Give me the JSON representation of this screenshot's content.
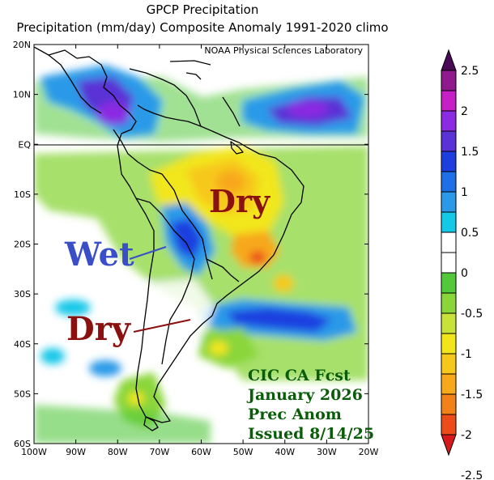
{
  "title": "GPCP Precipitation",
  "subtitle": "Precipitation (mm/day) Composite Anomaly 1991-2020 climo",
  "credit": "NOAA Physical Sciences Laboratory",
  "annotations": {
    "dry_north": "Dry",
    "wet": "Wet",
    "dry_south": "Dry",
    "forecast_block": [
      "CIC CA Fcst",
      "January 2026",
      "Prec Anom",
      "Issued 8/14/25"
    ]
  },
  "colors": {
    "dry_label": "#8b1010",
    "wet_label": "#3a4fc7",
    "forecast_text": "#0a5c0a",
    "border": "#000000"
  },
  "chart_data": {
    "type": "heatmap",
    "title": "GPCP Precipitation",
    "subtitle": "Precipitation (mm/day) Composite Anomaly 1991-2020 climo",
    "x_ticks": [
      "100W",
      "90W",
      "80W",
      "70W",
      "60W",
      "50W",
      "40W",
      "30W",
      "20W"
    ],
    "y_ticks": [
      "20N",
      "10N",
      "EQ",
      "10S",
      "20S",
      "30S",
      "40S",
      "50S",
      "60S"
    ],
    "x_range": [
      -100,
      -20
    ],
    "y_range": [
      -60,
      20
    ],
    "colorbar": {
      "labels": [
        "2.5",
        "2",
        "1.5",
        "1",
        "0.5",
        "0",
        "-0.5",
        "-1",
        "-1.5",
        "-2",
        "-2.5"
      ],
      "bins": [
        {
          "from": 2.25,
          "to": 2.5,
          "color": "#4b0a55"
        },
        {
          "from": 2.0,
          "to": 2.25,
          "color": "#8e1a8e"
        },
        {
          "from": 1.75,
          "to": 2.0,
          "color": "#c61fc6"
        },
        {
          "from": 1.5,
          "to": 1.75,
          "color": "#8b2be2"
        },
        {
          "from": 1.25,
          "to": 1.5,
          "color": "#5a32d6"
        },
        {
          "from": 1.0,
          "to": 1.25,
          "color": "#1e3fe0"
        },
        {
          "from": 0.75,
          "to": 1.0,
          "color": "#1f6fe6"
        },
        {
          "from": 0.5,
          "to": 0.75,
          "color": "#2a9ae8"
        },
        {
          "from": 0.25,
          "to": 0.5,
          "color": "#16c8e8"
        },
        {
          "from": 0.0,
          "to": 0.25,
          "color": "#ffffff"
        },
        {
          "from": -0.25,
          "to": 0.0,
          "color": "#ffffff"
        },
        {
          "from": -0.5,
          "to": -0.25,
          "color": "#52c83a"
        },
        {
          "from": -0.75,
          "to": -0.5,
          "color": "#8ad63a"
        },
        {
          "from": -1.0,
          "to": -0.75,
          "color": "#c8e23a"
        },
        {
          "from": -1.25,
          "to": -1.0,
          "color": "#f2e61a"
        },
        {
          "from": -1.5,
          "to": -1.25,
          "color": "#f7c81c"
        },
        {
          "from": -1.75,
          "to": -1.5,
          "color": "#f7a81c"
        },
        {
          "from": -2.0,
          "to": -1.75,
          "color": "#f2811a"
        },
        {
          "from": -2.25,
          "to": -2.0,
          "color": "#ec4b1a"
        },
        {
          "from": -2.5,
          "to": -2.25,
          "color": "#d61a1a"
        }
      ]
    },
    "anomaly_regions": [
      {
        "region": "Caribbean / northern South America",
        "lon": [
          -85,
          -70
        ],
        "lat": [
          5,
          15
        ],
        "anomaly": 1.5
      },
      {
        "region": "Tropical Atlantic near 10N",
        "lon": [
          -50,
          -25
        ],
        "lat": [
          5,
          15
        ],
        "anomaly": 1.5
      },
      {
        "region": "Central Brazil",
        "lon": [
          -60,
          -40
        ],
        "lat": [
          -20,
          -2
        ],
        "anomaly": -1.2
      },
      {
        "region": "Southeast Brazil",
        "lon": [
          -55,
          -40
        ],
        "lat": [
          -26,
          -18
        ],
        "anomaly": -2.0
      },
      {
        "region": "Bolivia / western Amazon",
        "lon": [
          -70,
          -60
        ],
        "lat": [
          -25,
          -12
        ],
        "anomaly": 1.0
      },
      {
        "region": "Subtropical South Atlantic",
        "lon": [
          -60,
          -30
        ],
        "lat": [
          -40,
          -33
        ],
        "anomaly": 1.0
      },
      {
        "region": "Central Argentina",
        "lon": [
          -68,
          -58
        ],
        "lat": [
          -38,
          -32
        ],
        "anomaly": -0.5
      }
    ]
  }
}
